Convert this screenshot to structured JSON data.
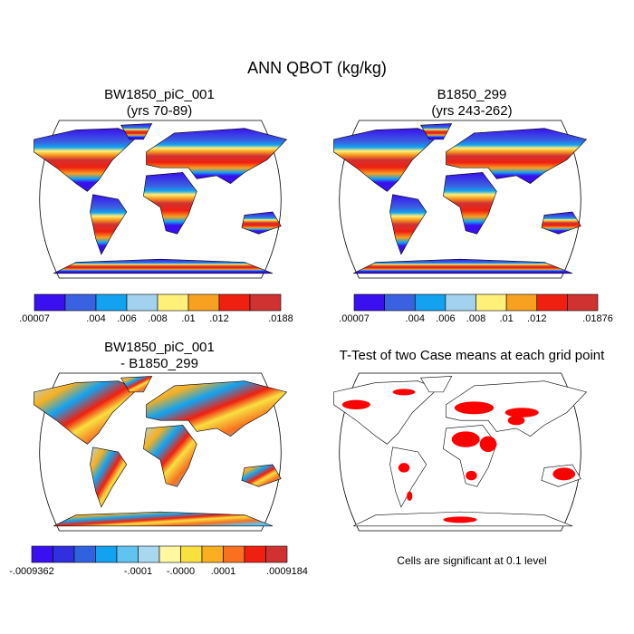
{
  "title": "ANN QBOT (kg/kg)",
  "panels": [
    {
      "title": "BW1850_piC_001",
      "subtitle": "(yrs 70-89)",
      "colorbar": {
        "colors": [
          "#3a10f0",
          "#3a62e0",
          "#12a2f0",
          "#a2d2f0",
          "#fff07a",
          "#f8a020",
          "#f02010",
          "#d03232"
        ],
        "labels": [
          ".00007",
          null,
          ".004",
          ".006",
          ".008",
          ".01",
          ".012",
          null,
          ".0188"
        ]
      }
    },
    {
      "title": "B1850_299",
      "subtitle": "(yrs 243-262)",
      "colorbar": {
        "colors": [
          "#3a10f0",
          "#3a62e0",
          "#12a2f0",
          "#a2d2f0",
          "#fff07a",
          "#f8a020",
          "#f02010",
          "#d03232"
        ],
        "labels": [
          ".00007",
          null,
          ".004",
          ".006",
          ".008",
          ".01",
          ".012",
          null,
          ".01876"
        ]
      }
    },
    {
      "title": "BW1850_piC_001",
      "subtitle": "- B1850_299",
      "colorbar": {
        "colors": [
          "#3a10f0",
          "#3030e0",
          "#3062e0",
          "#12a2f0",
          "#62c2f0",
          "#a8d8f0",
          "#fff8a0",
          "#f8e040",
          "#f8b020",
          "#f87020",
          "#f02010",
          "#d03232"
        ],
        "labels": [
          "-.0009362",
          null,
          null,
          null,
          null,
          "-.0001",
          null,
          "-.0000",
          null,
          ".0001",
          null,
          null,
          ".0009184"
        ]
      }
    },
    {
      "title": "T-Test of two Case means at each grid point",
      "note": "Cells are significant at 0.1 level"
    }
  ]
}
